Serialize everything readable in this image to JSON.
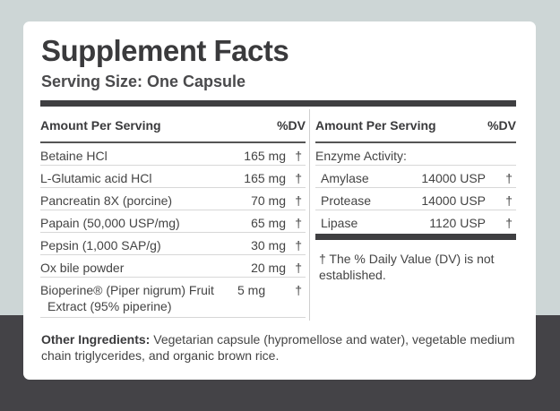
{
  "title": "Supplement Facts",
  "serving_size": "Serving Size: One Capsule",
  "left_table": {
    "header_amount": "Amount Per Serving",
    "header_dv": "%DV",
    "rows": [
      {
        "name": "Betaine HCl",
        "amount": "165 mg",
        "dv": "†"
      },
      {
        "name": "L-Glutamic acid HCl",
        "amount": "165 mg",
        "dv": "†"
      },
      {
        "name": "Pancreatin 8X (porcine)",
        "amount": "70 mg",
        "dv": "†"
      },
      {
        "name": "Papain (50,000 USP/mg)",
        "amount": "65 mg",
        "dv": "†"
      },
      {
        "name": "Pepsin (1,000 SAP/g)",
        "amount": "30 mg",
        "dv": "†"
      },
      {
        "name": "Ox bile powder",
        "amount": "20 mg",
        "dv": "†"
      }
    ],
    "last_row": {
      "name_line1": "Bioperine® (Piper nigrum) Fruit",
      "name_line2": "Extract (95% piperine)",
      "amount": "5 mg",
      "dv": "†"
    }
  },
  "right_table": {
    "header_amount": "Amount Per Serving",
    "header_dv": "%DV",
    "enzyme_heading": "Enzyme Activity:",
    "rows": [
      {
        "name": "Amylase",
        "amount": "14000 USP",
        "dv": "†"
      },
      {
        "name": "Protease",
        "amount": "14000 USP",
        "dv": "†"
      },
      {
        "name": "Lipase",
        "amount": "1120 USP",
        "dv": "†"
      }
    ],
    "footnote": "† The % Daily Value (DV) is not established."
  },
  "other_ingredients": {
    "label": "Other Ingredients:",
    "text": " Vegetarian capsule (hypromellose and water), vegetable medium chain triglycerides, and organic brown rice."
  }
}
